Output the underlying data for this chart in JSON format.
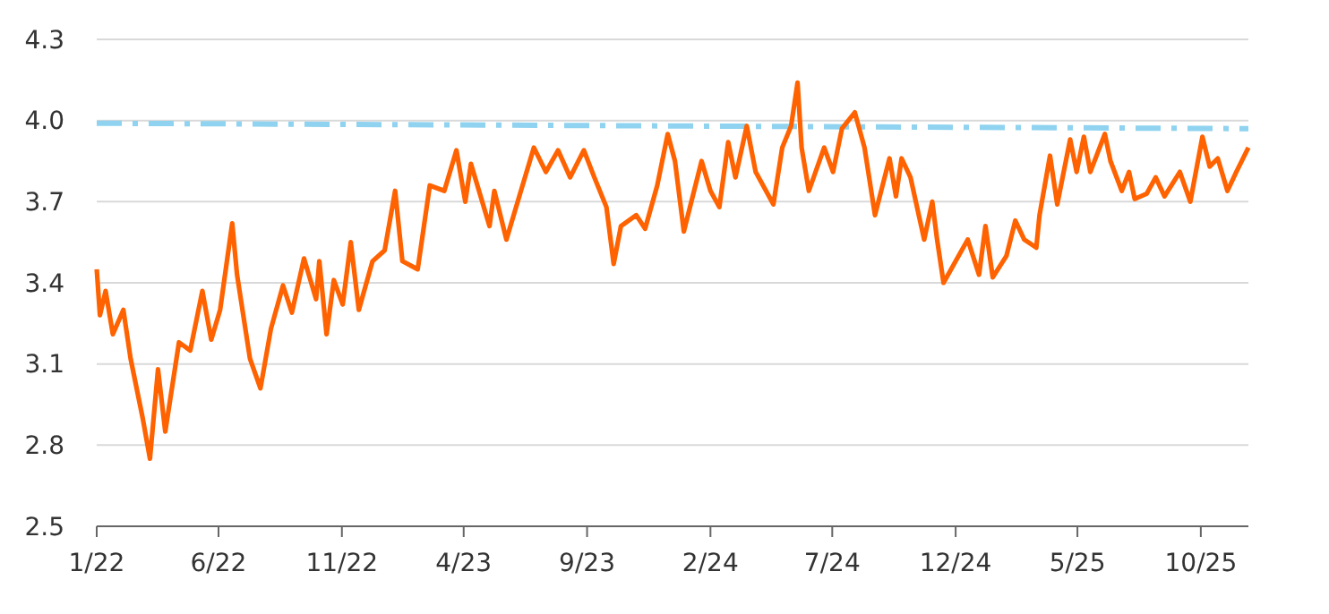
{
  "chart_data": {
    "type": "line",
    "ylim": [
      2.5,
      4.3
    ],
    "yticks": [
      2.5,
      2.8,
      3.1,
      3.4,
      3.7,
      {
        "value": 4,
        "label": "4.0"
      },
      4.3
    ],
    "xlim": [
      "2022-01-01",
      "2025-11-29"
    ],
    "xticks": [
      {
        "value": "2022-01-01",
        "label": "1/22"
      },
      {
        "value": "2022-06-01",
        "label": "6/22"
      },
      {
        "value": "2022-11-01",
        "label": "11/22"
      },
      {
        "value": "2023-04-01",
        "label": "4/23"
      },
      {
        "value": "2023-09-01",
        "label": "9/23"
      },
      {
        "value": "2024-02-01",
        "label": "2/24"
      },
      {
        "value": "2024-07-01",
        "label": "7/24"
      },
      {
        "value": "2024-12-01",
        "label": "12/24"
      },
      {
        "value": "2025-05-01",
        "label": "5/25"
      },
      {
        "value": "2025-10-01",
        "label": "10/25"
      }
    ],
    "grid": "y",
    "marker": "none",
    "series": [
      {
        "color": "#8fd3f0",
        "line_style": "dashed",
        "x": [
          "2022-01-01",
          "2025-11-29"
        ],
        "values": [
          3.99,
          3.97
        ]
      },
      {
        "color": "#ff6200",
        "line_style": "solid",
        "x": [
          "2022-01-01",
          "2022-01-05",
          "2022-01-12",
          "2022-01-21",
          "2022-02-03",
          "2022-02-12",
          "2022-02-27",
          "2022-03-08",
          "2022-03-18",
          "2022-03-27",
          "2022-04-13",
          "2022-04-27",
          "2022-05-12",
          "2022-05-23",
          "2022-06-03",
          "2022-06-18",
          "2022-06-24",
          "2022-07-10",
          "2022-07-23",
          "2022-08-05",
          "2022-08-20",
          "2022-08-31",
          "2022-09-15",
          "2022-09-30",
          "2022-10-04",
          "2022-10-13",
          "2022-10-22",
          "2022-11-02",
          "2022-11-12",
          "2022-11-22",
          "2022-12-09",
          "2022-12-24",
          "2023-01-06",
          "2023-01-15",
          "2023-02-03",
          "2023-02-18",
          "2023-03-08",
          "2023-03-23",
          "2023-04-03",
          "2023-04-10",
          "2023-05-03",
          "2023-05-09",
          "2023-05-24",
          "2023-06-09",
          "2023-06-27",
          "2023-07-12",
          "2023-07-27",
          "2023-08-11",
          "2023-08-28",
          "2023-09-10",
          "2023-09-25",
          "2023-10-04",
          "2023-10-13",
          "2023-11-01",
          "2023-11-12",
          "2023-11-27",
          "2023-12-10",
          "2023-12-19",
          "2023-12-30",
          "2024-01-21",
          "2024-02-01",
          "2024-02-12",
          "2024-02-23",
          "2024-03-03",
          "2024-03-17",
          "2024-03-28",
          "2024-04-19",
          "2024-04-30",
          "2024-05-11",
          "2024-05-19",
          "2024-05-24",
          "2024-06-02",
          "2024-06-21",
          "2024-07-02",
          "2024-07-13",
          "2024-07-29",
          "2024-08-10",
          "2024-08-23",
          "2024-09-10",
          "2024-09-18",
          "2024-09-25",
          "2024-10-06",
          "2024-10-23",
          "2024-11-02",
          "2024-11-08",
          "2024-11-16",
          "2024-12-01",
          "2024-12-16",
          "2024-12-30",
          "2025-01-07",
          "2025-01-16",
          "2025-02-02",
          "2025-02-13",
          "2025-02-24",
          "2025-03-11",
          "2025-03-15",
          "2025-03-28",
          "2025-04-06",
          "2025-04-22",
          "2025-04-30",
          "2025-05-09",
          "2025-05-17",
          "2025-06-04",
          "2025-06-11",
          "2025-06-25",
          "2025-07-04",
          "2025-07-11",
          "2025-07-26",
          "2025-08-06",
          "2025-08-17",
          "2025-09-05",
          "2025-09-18",
          "2025-10-03",
          "2025-10-12",
          "2025-10-22",
          "2025-11-03",
          "2025-11-14",
          "2025-11-29"
        ],
        "values": [
          3.45,
          3.28,
          3.37,
          3.21,
          3.3,
          3.12,
          2.9,
          2.75,
          3.08,
          2.85,
          3.18,
          3.15,
          3.37,
          3.19,
          3.3,
          3.62,
          3.43,
          3.12,
          3.01,
          3.23,
          3.39,
          3.29,
          3.49,
          3.34,
          3.48,
          3.21,
          3.41,
          3.32,
          3.55,
          3.3,
          3.48,
          3.52,
          3.74,
          3.48,
          3.45,
          3.76,
          3.74,
          3.89,
          3.7,
          3.84,
          3.61,
          3.74,
          3.56,
          3.72,
          3.9,
          3.81,
          3.89,
          3.79,
          3.89,
          3.79,
          3.68,
          3.47,
          3.61,
          3.65,
          3.6,
          3.76,
          3.95,
          3.85,
          3.59,
          3.85,
          3.74,
          3.68,
          3.92,
          3.79,
          3.98,
          3.81,
          3.69,
          3.9,
          3.98,
          4.14,
          3.9,
          3.74,
          3.9,
          3.81,
          3.97,
          4.03,
          3.9,
          3.65,
          3.86,
          3.72,
          3.86,
          3.79,
          3.56,
          3.7,
          3.56,
          3.4,
          3.48,
          3.56,
          3.43,
          3.61,
          3.42,
          3.5,
          3.63,
          3.56,
          3.53,
          3.65,
          3.87,
          3.69,
          3.93,
          3.81,
          3.94,
          3.81,
          3.95,
          3.85,
          3.74,
          3.81,
          3.71,
          3.73,
          3.79,
          3.72,
          3.81,
          3.7,
          3.94,
          3.83,
          3.86,
          3.74,
          3.81,
          3.9
        ]
      }
    ]
  }
}
